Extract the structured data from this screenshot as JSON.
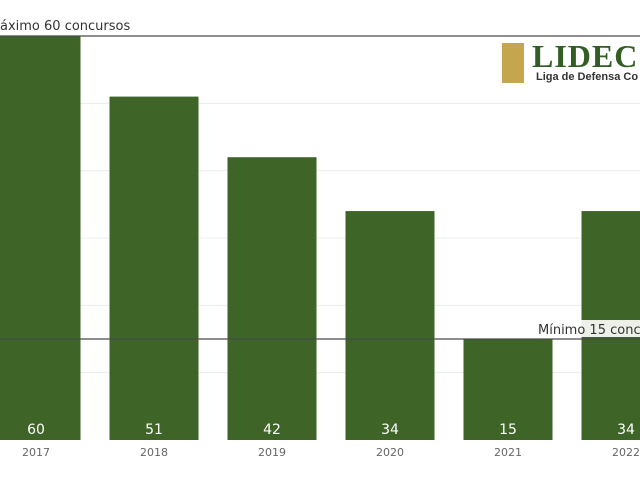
{
  "logo": {
    "wordmark": "LIDEC",
    "subtitle": "Liga de Defensa Co"
  },
  "colors": {
    "bar": "#3e6427",
    "reference_line": "#4a4a4a",
    "logo_gold": "#c4a64f",
    "logo_green": "#335d24"
  },
  "chart_data": {
    "type": "bar",
    "categories": [
      "2017",
      "2018",
      "2019",
      "2020",
      "2021",
      "2022"
    ],
    "values": [
      60,
      51,
      42,
      34,
      15,
      34
    ],
    "ylim": [
      0,
      60
    ],
    "grid": true,
    "reference_lines": [
      {
        "label": "áximo 60 concursos",
        "value": 60
      },
      {
        "label": "Mínimo 15 conc",
        "value": 15
      }
    ]
  }
}
